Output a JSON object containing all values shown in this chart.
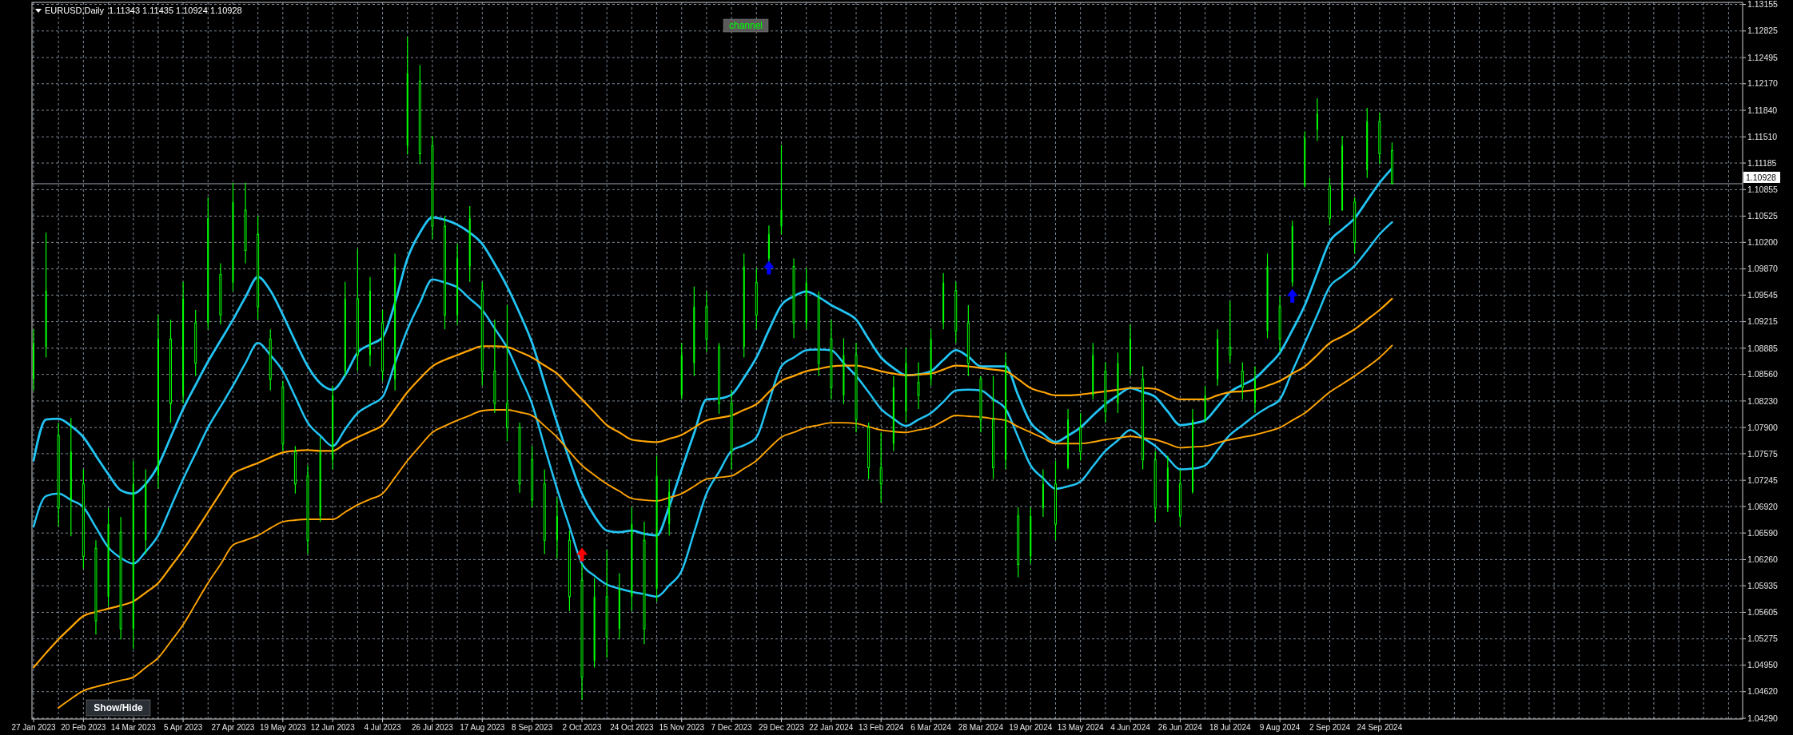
{
  "chart_data": {
    "type": "candlestick",
    "title": "EURUSD,Daily  1.11343 1.11435 1.10924 1.10928",
    "color": "#00ff00",
    "categories": [
      "27 Jan 2023",
      null,
      null,
      null,
      "20 Feb 2023",
      null,
      null,
      null,
      "14 Mar 2023",
      null,
      null,
      null,
      "5 Apr 2023",
      null,
      null,
      null,
      "27 Apr 2023",
      null,
      null,
      null,
      "19 May 2023",
      null,
      null,
      null,
      "12 Jun 2023",
      null,
      null,
      null,
      "4 Jul 2023",
      null,
      null,
      null,
      "26 Jul 2023",
      null,
      null,
      null,
      "17 Aug 2023",
      null,
      null,
      null,
      "8 Sep 2023",
      null,
      null,
      null,
      "2 Oct 2023",
      null,
      null,
      null,
      "24 Oct 2023",
      null,
      null,
      null,
      "15 Nov 2023",
      null,
      null,
      null,
      "7 Dec 2023",
      null,
      null,
      null,
      "29 Dec 2023",
      null,
      null,
      null,
      "22 Jan 2024",
      null,
      null,
      null,
      "13 Feb 2024",
      null,
      null,
      null,
      "6 Mar 2024",
      null,
      null,
      null,
      "28 Mar 2024",
      null,
      null,
      null,
      "19 Apr 2024",
      null,
      null,
      null,
      "13 May 2024",
      null,
      null,
      null,
      "4 Jun 2024",
      null,
      null,
      null,
      "26 Jun 2024",
      null,
      null,
      null,
      "18 Jul 2024",
      null,
      null,
      null,
      "9 Aug 2024",
      null,
      null,
      null,
      "2 Sep 2024",
      null,
      null,
      null,
      "24 Sep 2024",
      null,
      null,
      null,
      null,
      null,
      null,
      null,
      null,
      null,
      null,
      null,
      null,
      null,
      null,
      null,
      null,
      null,
      null,
      null,
      null,
      null,
      null,
      null,
      null,
      null,
      null,
      null,
      null,
      null
    ],
    "ohlc": [
      [
        1.085,
        1.0912,
        1.0836,
        1.0895
      ],
      [
        1.089,
        1.1032,
        1.0877,
        1.096
      ],
      [
        1.078,
        1.0796,
        1.0667,
        1.069
      ],
      [
        1.07,
        1.0802,
        1.0655,
        1.076
      ],
      [
        1.072,
        1.0738,
        1.0615,
        1.063
      ],
      [
        1.064,
        1.065,
        1.0533,
        1.055
      ],
      [
        1.058,
        1.069,
        1.0568,
        1.067
      ],
      [
        1.066,
        1.0679,
        1.0527,
        1.054
      ],
      [
        1.054,
        1.0749,
        1.0515,
        1.072
      ],
      [
        1.065,
        1.0738,
        1.0633,
        1.072
      ],
      [
        1.073,
        1.093,
        1.0714,
        1.09
      ],
      [
        1.09,
        1.0924,
        1.0796,
        1.082
      ],
      [
        1.083,
        1.0971,
        1.082,
        1.095
      ],
      [
        1.092,
        1.0936,
        1.0854,
        1.087
      ],
      [
        1.092,
        1.1076,
        1.0912,
        1.105
      ],
      [
        1.098,
        1.0994,
        1.0918,
        1.093
      ],
      [
        1.097,
        1.1094,
        1.0959,
        1.107
      ],
      [
        1.106,
        1.1094,
        1.0994,
        1.101
      ],
      [
        1.103,
        1.1053,
        1.0924,
        1.094
      ],
      [
        1.09,
        1.0912,
        1.0836,
        1.085
      ],
      [
        1.084,
        1.0848,
        1.0761,
        1.077
      ],
      [
        1.076,
        1.0767,
        1.0708,
        1.072
      ],
      [
        1.073,
        1.0743,
        1.0633,
        1.065
      ],
      [
        1.068,
        1.0778,
        1.0673,
        1.076
      ],
      [
        1.075,
        1.0842,
        1.0738,
        1.083
      ],
      [
        1.086,
        1.0971,
        1.0854,
        1.095
      ],
      [
        1.095,
        1.1012,
        1.086,
        1.088
      ],
      [
        1.088,
        1.0977,
        1.0866,
        1.096
      ],
      [
        1.092,
        1.0936,
        1.0848,
        1.086
      ],
      [
        1.085,
        1.1006,
        1.0836,
        1.099
      ],
      [
        1.114,
        1.1275,
        1.1129,
        1.123
      ],
      [
        1.122,
        1.124,
        1.1117,
        1.113
      ],
      [
        1.114,
        1.1152,
        1.1024,
        1.104
      ],
      [
        1.104,
        1.1053,
        1.0912,
        1.093
      ],
      [
        1.093,
        1.1018,
        1.0918,
        1.1
      ],
      [
        1.099,
        1.1065,
        1.0971,
        1.105
      ],
      [
        1.096,
        1.0971,
        1.0842,
        1.086
      ],
      [
        1.086,
        1.0924,
        1.0808,
        1.082
      ],
      [
        1.082,
        1.0942,
        1.0773,
        1.079
      ],
      [
        1.079,
        1.0796,
        1.0709,
        1.072
      ],
      [
        1.075,
        1.0767,
        1.0691,
        1.07
      ],
      [
        1.072,
        1.0738,
        1.0633,
        1.065
      ],
      [
        1.065,
        1.0703,
        1.0627,
        1.068
      ],
      [
        1.065,
        1.0662,
        1.0562,
        1.058
      ],
      [
        1.06,
        1.0621,
        1.0452,
        1.048
      ],
      [
        1.05,
        1.0603,
        1.0492,
        1.058
      ],
      [
        1.058,
        1.0638,
        1.0504,
        1.053
      ],
      [
        1.054,
        1.0609,
        1.0527,
        1.059
      ],
      [
        1.058,
        1.0691,
        1.0562,
        1.067
      ],
      [
        1.065,
        1.0673,
        1.0521,
        1.054
      ],
      [
        1.059,
        1.0755,
        1.0574,
        1.073
      ],
      [
        1.067,
        1.0726,
        1.0656,
        1.071
      ],
      [
        1.083,
        1.0895,
        1.0825,
        1.088
      ],
      [
        1.087,
        1.0965,
        1.0854,
        1.094
      ],
      [
        1.094,
        1.0959,
        1.0884,
        1.09
      ],
      [
        1.089,
        1.0895,
        1.0807,
        1.082
      ],
      [
        1.082,
        1.0837,
        1.0738,
        1.076
      ],
      [
        1.089,
        1.1006,
        1.0877,
        1.099
      ],
      [
        1.097,
        1.0988,
        1.0912,
        1.093
      ],
      [
        1.1,
        1.1041,
        1.0994,
        1.103
      ],
      [
        1.104,
        1.1141,
        1.103,
        1.106
      ],
      [
        1.099,
        1.1,
        1.0901,
        1.092
      ],
      [
        1.092,
        1.0988,
        1.0912,
        1.097
      ],
      [
        1.095,
        1.0959,
        1.0854,
        1.087
      ],
      [
        1.09,
        1.0924,
        1.0825,
        1.084
      ],
      [
        1.083,
        1.0901,
        1.0819,
        1.088
      ],
      [
        1.088,
        1.0895,
        1.0784,
        1.08
      ],
      [
        1.079,
        1.0796,
        1.0726,
        1.074
      ],
      [
        1.074,
        1.0784,
        1.0697,
        1.072
      ],
      [
        1.077,
        1.0854,
        1.0761,
        1.084
      ],
      [
        1.081,
        1.0889,
        1.0796,
        1.087
      ],
      [
        1.0846,
        1.0871,
        1.0813,
        1.083
      ],
      [
        1.085,
        1.0912,
        1.0842,
        1.09
      ],
      [
        1.092,
        1.0982,
        1.0912,
        1.097
      ],
      [
        1.096,
        1.0971,
        1.0895,
        1.091
      ],
      [
        1.092,
        1.0942,
        1.0854,
        1.087
      ],
      [
        1.085,
        1.0854,
        1.0784,
        1.08
      ],
      [
        1.08,
        1.0854,
        1.0726,
        1.074
      ],
      [
        1.075,
        1.0883,
        1.0738,
        1.087
      ],
      [
        1.068,
        1.0691,
        1.0604,
        1.062
      ],
      [
        1.063,
        1.0691,
        1.0621,
        1.068
      ],
      [
        1.069,
        1.0738,
        1.0679,
        1.072
      ],
      [
        1.072,
        1.0749,
        1.065,
        1.067
      ],
      [
        1.074,
        1.0813,
        1.0738,
        1.08
      ],
      [
        1.079,
        1.0808,
        1.0749,
        1.076
      ],
      [
        1.083,
        1.0895,
        1.0825,
        1.088
      ],
      [
        1.086,
        1.0871,
        1.0796,
        1.081
      ],
      [
        1.082,
        1.0883,
        1.0808,
        1.087
      ],
      [
        1.086,
        1.0918,
        1.0854,
        1.09
      ],
      [
        1.085,
        1.0866,
        1.0738,
        1.075
      ],
      [
        1.075,
        1.0761,
        1.0673,
        1.069
      ],
      [
        1.069,
        1.0755,
        1.0685,
        1.074
      ],
      [
        1.072,
        1.0738,
        1.0667,
        1.068
      ],
      [
        1.071,
        1.0813,
        1.0708,
        1.08
      ],
      [
        1.08,
        1.0842,
        1.0796,
        1.083
      ],
      [
        1.085,
        1.0912,
        1.0842,
        1.09
      ],
      [
        1.089,
        1.0947,
        1.0871,
        1.088
      ],
      [
        1.086,
        1.0871,
        1.0825,
        1.084
      ],
      [
        1.082,
        1.0866,
        1.0808,
        1.085
      ],
      [
        1.091,
        1.1006,
        1.0901,
        1.099
      ],
      [
        1.094,
        1.0953,
        1.0884,
        1.09
      ],
      [
        1.097,
        1.1047,
        1.0965,
        1.104
      ],
      [
        1.109,
        1.1158,
        1.1088,
        1.115
      ],
      [
        1.116,
        1.1199,
        1.1146,
        1.118
      ],
      [
        1.109,
        1.11,
        1.1041,
        1.105
      ],
      [
        1.106,
        1.1152,
        1.1059,
        1.114
      ],
      [
        1.107,
        1.1076,
        1.1006,
        1.102
      ],
      [
        1.111,
        1.1187,
        1.11,
        1.117
      ],
      [
        1.117,
        1.1181,
        1.1117,
        1.113
      ],
      [
        1.1134,
        1.1144,
        1.1092,
        1.1093
      ],
      null,
      null,
      null,
      null,
      null,
      null,
      null,
      null,
      null,
      null,
      null,
      null,
      null,
      null,
      null,
      null,
      null,
      null,
      null,
      null,
      null,
      null,
      null,
      null,
      null,
      null,
      null,
      null
    ],
    "series": [
      {
        "type": "line",
        "color": "#22c4f4",
        "values": [
          1.0749,
          1.08,
          1.0801,
          1.0792,
          1.0778,
          1.0755,
          1.0732,
          1.0712,
          1.0708,
          1.072,
          1.0743,
          1.0778,
          1.0813,
          1.0843,
          1.0872,
          1.0898,
          1.0924,
          1.0952,
          1.0977,
          1.096,
          1.093,
          1.0897,
          1.0866,
          1.0845,
          1.0837,
          1.0855,
          1.0883,
          1.0893,
          1.0902,
          1.0945,
          1.1,
          1.1032,
          1.1051,
          1.1048,
          1.1042,
          1.1032,
          1.1018,
          1.0993,
          1.0965,
          1.0932,
          1.0895,
          1.0845,
          1.0796,
          1.075,
          1.0708,
          1.068,
          1.0662,
          1.066,
          1.0662,
          1.0658,
          1.0656,
          1.0692,
          1.0738,
          1.0783,
          1.0825,
          1.0826,
          1.0831,
          1.0852,
          1.0877,
          1.0911,
          1.0942,
          1.0953,
          1.0959,
          1.0952,
          1.0942,
          1.0934,
          1.0924,
          1.09,
          1.0877,
          1.0864,
          1.0855,
          1.0856,
          1.086,
          1.0874,
          1.0886,
          1.0878,
          1.0866,
          1.0866,
          1.0866,
          1.083,
          1.0796,
          1.0782,
          1.0772,
          1.078,
          1.079,
          1.0805,
          1.0819,
          1.083,
          1.0839,
          1.0834,
          1.0828,
          1.081,
          1.0793,
          1.0795,
          1.0799,
          1.0816,
          1.0834,
          1.0843,
          1.0851,
          1.0866,
          1.0883,
          1.0911,
          1.0942,
          1.0982,
          1.1021,
          1.1036,
          1.105,
          1.1072,
          1.1094,
          1.1112,
          null,
          null,
          null,
          null,
          null,
          null,
          null,
          null,
          null,
          null,
          null,
          null,
          null,
          null,
          null,
          null,
          null,
          null,
          null,
          null,
          null,
          null,
          null,
          null,
          null,
          null,
          null,
          null
        ]
      },
      {
        "type": "line",
        "color": "#22c4f4",
        "values": [
          1.0667,
          1.0705,
          1.0708,
          1.07,
          1.0691,
          1.0666,
          1.0641,
          1.0628,
          1.0621,
          1.0636,
          1.0656,
          1.0691,
          1.0726,
          1.0758,
          1.079,
          1.0816,
          1.0842,
          1.087,
          1.0895,
          1.088,
          1.086,
          1.0828,
          1.0796,
          1.078,
          1.0767,
          1.0788,
          1.0808,
          1.0818,
          1.0828,
          1.087,
          1.0912,
          1.0945,
          1.0974,
          1.097,
          1.0964,
          1.095,
          1.0936,
          1.0913,
          1.0889,
          1.0855,
          1.0819,
          1.0766,
          1.0714,
          1.0667,
          1.0621,
          1.0606,
          1.0595,
          1.059,
          1.0586,
          1.0583,
          1.058,
          1.0594,
          1.0612,
          1.066,
          1.0708,
          1.0735,
          1.0761,
          1.0768,
          1.0778,
          1.0822,
          1.0866,
          1.0877,
          1.0886,
          1.0887,
          1.0886,
          1.087,
          1.0854,
          1.0834,
          1.0813,
          1.0801,
          1.0792,
          1.08,
          1.0808,
          1.0822,
          1.0836,
          1.0837,
          1.0836,
          1.0825,
          1.0813,
          1.0778,
          1.0743,
          1.0727,
          1.0714,
          1.0717,
          1.0723,
          1.0742,
          1.0761,
          1.0774,
          1.0787,
          1.0777,
          1.0767,
          1.0752,
          1.0738,
          1.0739,
          1.0743,
          1.0762,
          1.0781,
          1.0793,
          1.0805,
          1.0815,
          1.0825,
          1.086,
          1.0895,
          1.093,
          1.0965,
          1.0978,
          1.0991,
          1.101,
          1.103,
          1.1045,
          null,
          null,
          null,
          null,
          null,
          null,
          null,
          null,
          null,
          null,
          null,
          null,
          null,
          null,
          null,
          null,
          null,
          null,
          null,
          null,
          null,
          null,
          null,
          null,
          null,
          null,
          null,
          null
        ]
      },
      {
        "type": "line",
        "color": "#ffa500",
        "values": [
          1.0492,
          1.051,
          1.0527,
          1.0542,
          1.0556,
          1.0561,
          1.0565,
          1.0569,
          1.0574,
          1.0585,
          1.0597,
          1.0617,
          1.0638,
          1.0661,
          1.0685,
          1.0709,
          1.0732,
          1.074,
          1.0746,
          1.0753,
          1.0759,
          1.0761,
          1.0762,
          1.0761,
          1.0761,
          1.077,
          1.0778,
          1.0785,
          1.0793,
          1.0813,
          1.0834,
          1.0851,
          1.0866,
          1.0874,
          1.088,
          1.0886,
          1.0891,
          1.0891,
          1.089,
          1.0884,
          1.0877,
          1.0867,
          1.0857,
          1.0841,
          1.0825,
          1.0809,
          1.0793,
          1.0784,
          1.0775,
          1.0773,
          1.0772,
          1.0776,
          1.0781,
          1.079,
          1.0799,
          1.0802,
          1.0805,
          1.0812,
          1.0819,
          1.0834,
          1.0848,
          1.0854,
          1.086,
          1.0863,
          1.0866,
          1.0867,
          1.0867,
          1.0864,
          1.086,
          1.0857,
          1.0855,
          1.0856,
          1.0857,
          1.0862,
          1.0867,
          1.0866,
          1.0864,
          1.0862,
          1.086,
          1.085,
          1.0839,
          1.0834,
          1.083,
          1.083,
          1.0831,
          1.0833,
          1.0835,
          1.0837,
          1.0839,
          1.0839,
          1.0838,
          1.0831,
          1.0825,
          1.0825,
          1.0825,
          1.083,
          1.0834,
          1.0835,
          1.0837,
          1.0842,
          1.0848,
          1.0857,
          1.0866,
          1.088,
          1.0895,
          1.0903,
          1.0912,
          1.0924,
          1.0936,
          1.095,
          null,
          null,
          null,
          null,
          null,
          null,
          null,
          null,
          null,
          null,
          null,
          null,
          null,
          null,
          null,
          null,
          null,
          null,
          null,
          null,
          null,
          null,
          null,
          null,
          null,
          null,
          null,
          null
        ]
      },
      {
        "type": "line",
        "color": "#ffa500",
        "values": [
          null,
          null,
          1.0442,
          1.0453,
          1.0463,
          1.0468,
          1.0472,
          1.0476,
          1.048,
          1.0492,
          1.0504,
          1.0524,
          1.0545,
          1.0571,
          1.0597,
          1.062,
          1.0644,
          1.065,
          1.0656,
          1.0665,
          1.0673,
          1.0675,
          1.0676,
          1.0676,
          1.0676,
          1.0685,
          1.0694,
          1.0701,
          1.0708,
          1.0728,
          1.0749,
          1.0767,
          1.0784,
          1.0792,
          1.0799,
          1.0805,
          1.0811,
          1.0812,
          1.0812,
          1.0809,
          1.0805,
          1.0792,
          1.0778,
          1.076,
          1.0743,
          1.0731,
          1.072,
          1.0711,
          1.0702,
          1.07,
          1.0699,
          1.0703,
          1.0708,
          1.0717,
          1.0726,
          1.0728,
          1.073,
          1.0739,
          1.0749,
          1.0764,
          1.0778,
          1.0784,
          1.079,
          1.0793,
          1.0796,
          1.0796,
          1.0795,
          1.0791,
          1.0787,
          1.0785,
          1.0784,
          1.0787,
          1.079,
          1.0798,
          1.0805,
          1.0804,
          1.0803,
          1.0801,
          1.0799,
          1.0791,
          1.0784,
          1.0777,
          1.077,
          1.077,
          1.077,
          1.0772,
          1.0775,
          1.0777,
          1.0779,
          1.0777,
          1.0775,
          1.077,
          1.0765,
          1.0766,
          1.0767,
          1.0771,
          1.0775,
          1.0778,
          1.0781,
          1.0785,
          1.079,
          1.0799,
          1.0808,
          1.0821,
          1.0834,
          1.0844,
          1.0854,
          1.0865,
          1.0877,
          1.0892,
          null,
          null,
          null,
          null,
          null,
          null,
          null,
          null,
          null,
          null,
          null,
          null,
          null,
          null,
          null,
          null,
          null,
          null,
          null,
          null,
          null,
          null,
          null,
          null,
          null,
          null,
          null,
          null
        ]
      },
      {
        "type": "scatter",
        "color": "#0000ff",
        "marker": "triangle",
        "values": [
          null,
          null,
          null,
          null,
          null,
          null,
          null,
          null,
          null,
          null,
          null,
          null,
          null,
          null,
          null,
          null,
          null,
          null,
          null,
          null,
          null,
          null,
          null,
          null,
          null,
          null,
          null,
          null,
          null,
          null,
          null,
          null,
          null,
          null,
          null,
          null,
          null,
          null,
          null,
          null,
          null,
          null,
          null,
          null,
          null,
          null,
          null,
          null,
          null,
          null,
          null,
          null,
          null,
          null,
          null,
          null,
          null,
          null,
          null,
          1.0988,
          null,
          null,
          null,
          null,
          null,
          null,
          null,
          null,
          null,
          null,
          null,
          null,
          null,
          null,
          null,
          null,
          null,
          null,
          null,
          null,
          null,
          null,
          null,
          null,
          null,
          null,
          null,
          null,
          null,
          null,
          null,
          null,
          null,
          null,
          null,
          null,
          null,
          null,
          null,
          null,
          null,
          1.0953,
          null,
          null,
          null,
          null,
          null,
          null,
          null,
          null,
          null,
          null,
          null,
          null,
          null,
          null,
          null,
          null,
          null,
          null,
          null,
          null,
          null,
          null,
          null,
          null,
          null,
          null,
          null,
          null,
          null,
          null,
          null,
          null,
          null,
          null,
          null,
          null
        ]
      },
      {
        "type": "scatter",
        "color": "#ff0000",
        "marker": "triangle",
        "values": [
          null,
          null,
          null,
          null,
          null,
          null,
          null,
          null,
          null,
          null,
          null,
          null,
          null,
          null,
          null,
          null,
          null,
          null,
          null,
          null,
          null,
          null,
          null,
          null,
          null,
          null,
          null,
          null,
          null,
          null,
          null,
          null,
          null,
          null,
          null,
          null,
          null,
          null,
          null,
          null,
          null,
          null,
          null,
          null,
          1.0632,
          null,
          null,
          null,
          null,
          null,
          null,
          null,
          null,
          null,
          null,
          null,
          null,
          null,
          null,
          null,
          null,
          null,
          null,
          null,
          null,
          null,
          null,
          null,
          null,
          null,
          null,
          null,
          null,
          null,
          null,
          null,
          null,
          null,
          null,
          null,
          null,
          null,
          null,
          null,
          null,
          null,
          null,
          null,
          null,
          null,
          null,
          null,
          null,
          null,
          null,
          null,
          null,
          null,
          null,
          null,
          null,
          null,
          null,
          null,
          null,
          null,
          null,
          null,
          null,
          null,
          null,
          null,
          null,
          null,
          null,
          null,
          null,
          null,
          null,
          null,
          null,
          null,
          null,
          null,
          null,
          null,
          null,
          null,
          null,
          null,
          null,
          null,
          null,
          null,
          null,
          null,
          null,
          null
        ]
      }
    ],
    "ylim": [
      1.0428,
      1.1318
    ],
    "yticks": [
      {
        "value": 1.13155,
        "label": "1.13155"
      },
      {
        "value": 1.12825,
        "label": "1.12825"
      },
      {
        "value": 1.12495,
        "label": "1.12495"
      },
      {
        "value": 1.1217,
        "label": "1.12170"
      },
      {
        "value": 1.1184,
        "label": "1.11840"
      },
      {
        "value": 1.1151,
        "label": "1.11510"
      },
      {
        "value": 1.11185,
        "label": "1.11185"
      },
      {
        "value": 1.10855,
        "label": "1.10855"
      },
      {
        "value": 1.10525,
        "label": "1.10525"
      },
      {
        "value": 1.102,
        "label": "1.10200"
      },
      {
        "value": 1.0987,
        "label": "1.09870"
      },
      {
        "value": 1.09545,
        "label": "1.09545"
      },
      {
        "value": 1.09215,
        "label": "1.09215"
      },
      {
        "value": 1.08885,
        "label": "1.08885"
      },
      {
        "value": 1.0856,
        "label": "1.08560"
      },
      {
        "value": 1.0823,
        "label": "1.08230"
      },
      {
        "value": 1.079,
        "label": "1.07900"
      },
      {
        "value": 1.07575,
        "label": "1.07575"
      },
      {
        "value": 1.07245,
        "label": "1.07245"
      },
      {
        "value": 1.0692,
        "label": "1.06920"
      },
      {
        "value": 1.0659,
        "label": "1.06590"
      },
      {
        "value": 1.0626,
        "label": "1.06260"
      },
      {
        "value": 1.05935,
        "label": "1.05935"
      },
      {
        "value": 1.05605,
        "label": "1.05605"
      },
      {
        "value": 1.05275,
        "label": "1.05275"
      },
      {
        "value": 1.0495,
        "label": "1.04950"
      },
      {
        "value": 1.0462,
        "label": "1.04620"
      },
      {
        "value": 1.0429,
        "label": "1.04290"
      }
    ],
    "grid": true,
    "ref_lines": [
      {
        "axis": "y",
        "value": 1.10928,
        "label": "1.10928",
        "color": "#9aa4b0"
      }
    ],
    "annotations": [
      "channel",
      "Show/Hide"
    ]
  }
}
